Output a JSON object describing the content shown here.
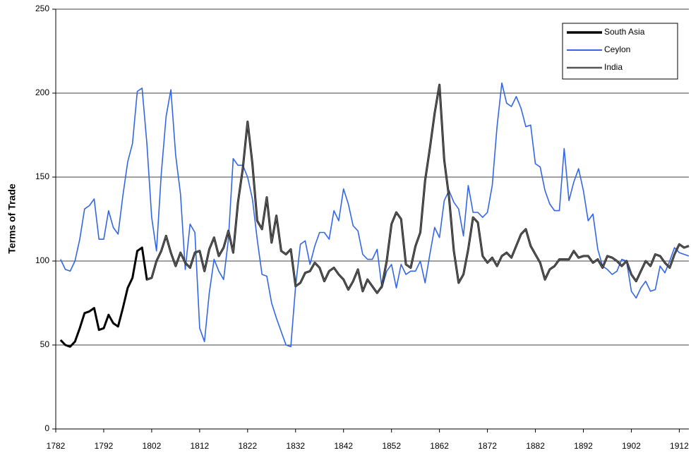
{
  "chart_data": {
    "type": "line",
    "y_label": "Terms of Trade",
    "x": [
      1783,
      1784,
      1785,
      1786,
      1787,
      1788,
      1789,
      1790,
      1791,
      1792,
      1793,
      1794,
      1795,
      1796,
      1797,
      1798,
      1799,
      1800,
      1801,
      1802,
      1803,
      1804,
      1805,
      1806,
      1807,
      1808,
      1809,
      1810,
      1811,
      1812,
      1813,
      1814,
      1815,
      1816,
      1817,
      1818,
      1819,
      1820,
      1821,
      1822,
      1823,
      1824,
      1825,
      1826,
      1827,
      1828,
      1829,
      1830,
      1831,
      1832,
      1833,
      1834,
      1835,
      1836,
      1837,
      1838,
      1839,
      1840,
      1841,
      1842,
      1843,
      1844,
      1845,
      1846,
      1847,
      1848,
      1849,
      1850,
      1851,
      1852,
      1853,
      1854,
      1855,
      1856,
      1857,
      1858,
      1859,
      1860,
      1861,
      1862,
      1863,
      1864,
      1865,
      1866,
      1867,
      1868,
      1869,
      1870,
      1871,
      1872,
      1873,
      1874,
      1875,
      1876,
      1877,
      1878,
      1879,
      1880,
      1881,
      1882,
      1883,
      1884,
      1885,
      1886,
      1887,
      1888,
      1889,
      1890,
      1891,
      1892,
      1893,
      1894,
      1895,
      1896,
      1897,
      1898,
      1899,
      1900,
      1901,
      1902,
      1903,
      1904,
      1905,
      1906,
      1907,
      1908,
      1909,
      1910,
      1911,
      1912,
      1913,
      1914
    ],
    "series": [
      {
        "name": "Ceylon",
        "color": "#3366e6",
        "width": 1.6,
        "values": [
          101,
          95,
          94,
          100,
          113,
          131,
          133,
          137,
          113,
          113,
          130,
          120,
          116,
          139,
          159,
          170,
          201,
          203,
          170,
          126,
          106,
          152,
          186,
          202,
          163,
          140,
          95,
          122,
          117,
          60,
          52,
          81,
          101,
          94,
          89,
          113,
          161,
          157,
          157,
          150,
          137,
          113,
          92,
          91,
          75,
          66,
          58,
          50,
          49,
          85,
          110,
          112,
          98,
          109,
          117,
          117,
          113,
          130,
          124,
          143,
          134,
          121,
          118,
          104,
          101,
          101,
          107,
          84,
          94,
          98,
          84,
          98,
          92,
          94,
          94,
          100,
          87,
          104,
          120,
          114,
          136,
          142,
          135,
          131,
          115,
          145,
          129,
          129,
          126,
          129,
          145,
          180,
          206,
          194,
          192,
          198,
          191,
          180,
          181,
          158,
          156,
          142,
          134,
          130,
          130,
          167,
          136,
          147,
          155,
          142,
          124,
          128,
          107,
          97,
          95,
          92,
          94,
          101,
          100,
          82,
          78,
          84,
          88,
          82,
          83,
          97,
          93,
          100,
          108,
          105,
          104,
          103
        ]
      },
      {
        "name": "South Asia",
        "color": "#000000",
        "width": 3,
        "values": [
          53,
          50,
          49,
          52,
          60,
          69,
          70,
          72,
          59,
          60,
          68,
          63,
          61,
          72,
          84,
          90,
          106,
          108,
          89,
          90,
          100,
          106,
          115,
          105,
          97,
          105,
          99,
          96,
          105,
          106,
          94,
          107,
          114,
          103,
          108,
          118,
          105,
          135,
          155,
          183,
          158,
          124,
          119,
          138,
          111,
          127,
          106,
          104,
          107,
          85,
          87,
          93,
          94,
          99,
          96,
          88,
          94,
          96,
          92,
          89,
          83,
          88,
          95,
          82,
          89,
          85,
          81,
          85,
          100,
          122,
          129,
          125,
          98,
          96,
          109,
          117,
          148,
          167,
          188,
          205,
          160,
          138,
          106,
          87,
          92,
          107,
          126,
          123,
          103,
          99,
          102,
          97,
          103,
          105,
          102,
          109,
          116,
          119,
          109,
          104,
          99,
          89,
          95,
          97,
          101,
          101,
          101,
          106,
          102,
          103,
          103,
          99,
          101,
          96,
          103,
          102,
          100,
          97,
          100,
          92,
          88,
          94,
          100,
          97,
          104,
          103,
          99,
          96,
          104,
          110,
          108,
          109
        ]
      },
      {
        "name": "India",
        "color": "#555555",
        "width": 2,
        "values": [
          null,
          null,
          null,
          null,
          null,
          null,
          null,
          null,
          null,
          null,
          null,
          null,
          null,
          null,
          null,
          null,
          null,
          null,
          89,
          90,
          100,
          106,
          115,
          105,
          97,
          105,
          99,
          96,
          105,
          106,
          94,
          107,
          114,
          103,
          108,
          118,
          105,
          135,
          155,
          183,
          158,
          124,
          119,
          138,
          111,
          127,
          106,
          104,
          107,
          85,
          87,
          93,
          94,
          99,
          96,
          88,
          94,
          96,
          92,
          89,
          83,
          88,
          95,
          82,
          89,
          85,
          81,
          85,
          100,
          122,
          129,
          125,
          98,
          96,
          109,
          117,
          148,
          167,
          188,
          205,
          160,
          138,
          106,
          87,
          92,
          107,
          126,
          123,
          103,
          99,
          102,
          97,
          103,
          105,
          102,
          109,
          116,
          119,
          109,
          104,
          99,
          89,
          95,
          97,
          101,
          101,
          101,
          106,
          102,
          103,
          103,
          99,
          101,
          96,
          103,
          102,
          100,
          97,
          100,
          92,
          88,
          94,
          100,
          97,
          104,
          103,
          99,
          96,
          104,
          110,
          108,
          109
        ]
      }
    ],
    "legend_order": [
      "South Asia",
      "Ceylon",
      "India"
    ],
    "xlim": [
      1782,
      1914
    ],
    "xticks": [
      1782,
      1792,
      1802,
      1812,
      1822,
      1832,
      1842,
      1852,
      1862,
      1872,
      1882,
      1892,
      1902,
      1912
    ],
    "ylim": [
      0,
      250
    ],
    "yticks": [
      0,
      50,
      100,
      150,
      200,
      250
    ],
    "grid": true,
    "legend": "upper right"
  }
}
